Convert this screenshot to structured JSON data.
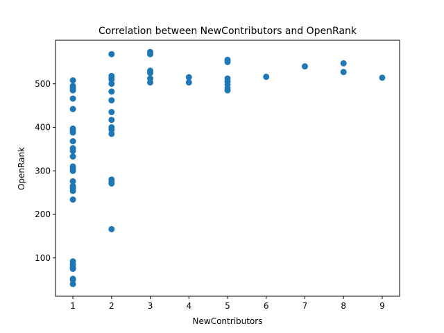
{
  "chart_data": {
    "type": "scatter",
    "title": "Correlation between NewContributors and OpenRank",
    "xlabel": "NewContributors",
    "ylabel": "OpenRank",
    "xlim": [
      0.55,
      9.45
    ],
    "ylim": [
      12,
      600
    ],
    "xticks": [
      1,
      2,
      3,
      4,
      5,
      6,
      7,
      8,
      9
    ],
    "yticks": [
      100,
      200,
      300,
      400,
      500
    ],
    "grid": false,
    "marker_color": "#1f77b4",
    "points": [
      [
        1,
        508
      ],
      [
        1,
        495
      ],
      [
        1,
        490
      ],
      [
        1,
        485
      ],
      [
        1,
        466
      ],
      [
        1,
        442
      ],
      [
        1,
        397
      ],
      [
        1,
        392
      ],
      [
        1,
        388
      ],
      [
        1,
        368
      ],
      [
        1,
        352
      ],
      [
        1,
        346
      ],
      [
        1,
        333
      ],
      [
        1,
        310
      ],
      [
        1,
        305
      ],
      [
        1,
        300
      ],
      [
        1,
        276
      ],
      [
        1,
        265
      ],
      [
        1,
        260
      ],
      [
        1,
        254
      ],
      [
        1,
        234
      ],
      [
        1,
        92
      ],
      [
        1,
        85
      ],
      [
        1,
        78
      ],
      [
        1,
        75
      ],
      [
        1,
        52
      ],
      [
        1,
        50
      ],
      [
        1,
        40
      ],
      [
        2,
        568
      ],
      [
        2,
        518
      ],
      [
        2,
        514
      ],
      [
        2,
        510
      ],
      [
        2,
        500
      ],
      [
        2,
        482
      ],
      [
        2,
        462
      ],
      [
        2,
        435
      ],
      [
        2,
        417
      ],
      [
        2,
        400
      ],
      [
        2,
        395
      ],
      [
        2,
        385
      ],
      [
        2,
        280
      ],
      [
        2,
        275
      ],
      [
        2,
        271
      ],
      [
        2,
        166
      ],
      [
        3,
        573
      ],
      [
        3,
        568
      ],
      [
        3,
        530
      ],
      [
        3,
        525
      ],
      [
        3,
        512
      ],
      [
        3,
        503
      ],
      [
        4,
        515
      ],
      [
        4,
        503
      ],
      [
        5,
        555
      ],
      [
        5,
        550
      ],
      [
        5,
        512
      ],
      [
        5,
        505
      ],
      [
        5,
        498
      ],
      [
        5,
        490
      ],
      [
        5,
        485
      ],
      [
        6,
        516
      ],
      [
        7,
        540
      ],
      [
        8,
        547
      ],
      [
        8,
        527
      ],
      [
        9,
        514
      ]
    ]
  }
}
